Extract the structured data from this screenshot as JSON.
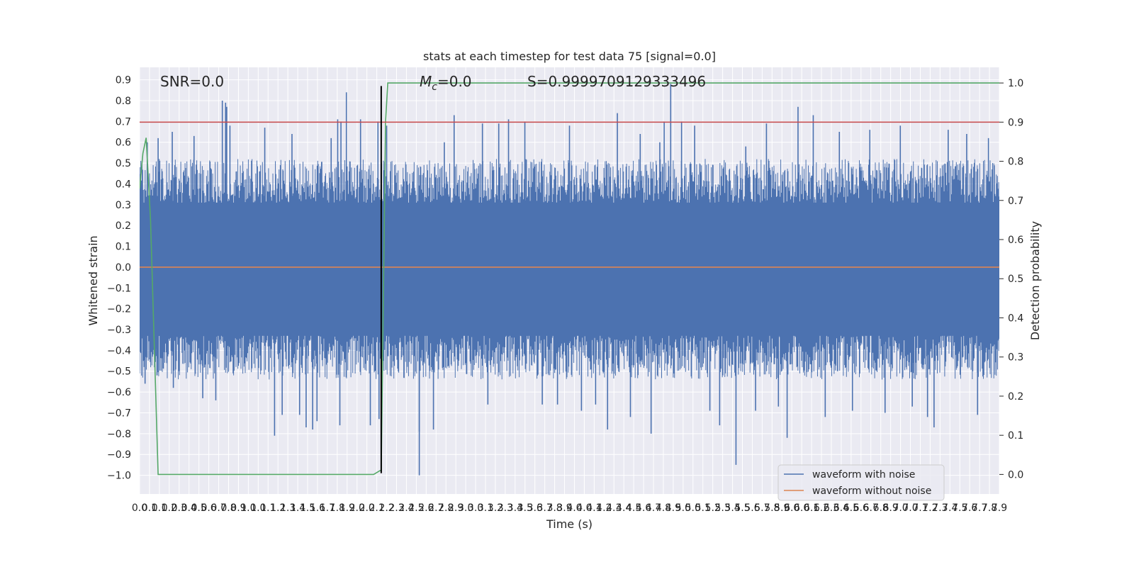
{
  "chart_data": {
    "type": "line",
    "title": "stats at each timestep for test data 75 [signal=0.0]",
    "xlabel": "Time (s)",
    "ylabel_left": "Whitened strain",
    "ylabel_right": "Detection probability",
    "xlim": [
      0.0,
      7.9
    ],
    "ylim_left": [
      -1.09,
      0.96
    ],
    "ylim_right": [
      -0.05,
      1.04
    ],
    "grid": true,
    "x_tick_labels": [
      "0.0",
      "0.1",
      "0.1",
      "0.2",
      "0.3",
      "0.4",
      "0.5",
      "0.6",
      "0.7",
      "0.8",
      "0.9",
      "1.0",
      "1.0",
      "1.1",
      "1.2",
      "1.3",
      "1.4",
      "1.5",
      "1.6",
      "1.7",
      "1.8",
      "1.9",
      "2.0",
      "2.0",
      "2.1",
      "2.2",
      "2.3",
      "2.4",
      "2.5",
      "2.6",
      "2.7",
      "2.8",
      "2.9",
      "3.0",
      "3.0",
      "3.1",
      "3.2",
      "3.3",
      "3.4",
      "3.5",
      "3.6",
      "3.7",
      "3.8",
      "3.9",
      "4.0",
      "4.0",
      "4.1",
      "4.2",
      "4.3",
      "4.4",
      "4.5",
      "4.6",
      "4.7",
      "4.8",
      "4.9",
      "5.0",
      "5.0",
      "5.1",
      "5.2",
      "5.3",
      "5.4",
      "5.5",
      "5.6",
      "5.7",
      "5.8",
      "5.9",
      "6.0",
      "6.0",
      "6.1",
      "6.2",
      "6.3",
      "6.4",
      "6.5",
      "6.6",
      "6.7",
      "6.8",
      "6.9",
      "7.0",
      "7.0",
      "7.1",
      "7.2",
      "7.3",
      "7.4",
      "7.5",
      "7.6",
      "7.7",
      "7.8",
      "7.9"
    ],
    "y_left_ticks": [
      "0.9",
      "0.8",
      "0.7",
      "0.6",
      "0.5",
      "0.4",
      "0.3",
      "0.2",
      "0.1",
      "0.0",
      "-0.1",
      "-0.2",
      "-0.3",
      "-0.4",
      "-0.5",
      "-0.6",
      "-0.7",
      "-0.8",
      "-0.9",
      "-1.0"
    ],
    "y_right_ticks": [
      "1.0",
      "0.9",
      "0.8",
      "0.7",
      "0.6",
      "0.5",
      "0.4",
      "0.3",
      "0.2",
      "0.1",
      "0.0"
    ],
    "series": [
      {
        "name": "waveform with noise",
        "color": "#4c72b0",
        "axis": "left",
        "band_low": -0.33,
        "band_high": 0.31,
        "spikes": [
          {
            "x": 0.0,
            "y": 0.48
          },
          {
            "x": 0.05,
            "y": -0.56
          },
          {
            "x": 0.07,
            "y": 0.6
          },
          {
            "x": 0.16,
            "y": -0.52
          },
          {
            "x": 0.17,
            "y": 0.62
          },
          {
            "x": 0.3,
            "y": 0.65
          },
          {
            "x": 0.31,
            "y": -0.58
          },
          {
            "x": 0.5,
            "y": 0.63
          },
          {
            "x": 0.58,
            "y": -0.63
          },
          {
            "x": 0.7,
            "y": -0.64
          },
          {
            "x": 0.76,
            "y": 0.8
          },
          {
            "x": 0.79,
            "y": 0.79
          },
          {
            "x": 0.8,
            "y": 0.77
          },
          {
            "x": 0.83,
            "y": 0.68
          },
          {
            "x": 1.15,
            "y": 0.67
          },
          {
            "x": 1.24,
            "y": -0.81
          },
          {
            "x": 1.31,
            "y": -0.71
          },
          {
            "x": 1.4,
            "y": 0.64
          },
          {
            "x": 1.47,
            "y": -0.71
          },
          {
            "x": 1.53,
            "y": -0.77
          },
          {
            "x": 1.59,
            "y": -0.78
          },
          {
            "x": 1.63,
            "y": -0.74
          },
          {
            "x": 1.76,
            "y": 0.62
          },
          {
            "x": 1.84,
            "y": -0.76
          },
          {
            "x": 1.82,
            "y": 0.71
          },
          {
            "x": 1.85,
            "y": 0.7
          },
          {
            "x": 1.9,
            "y": 0.84
          },
          {
            "x": 2.03,
            "y": 0.71
          },
          {
            "x": 2.12,
            "y": -0.76
          },
          {
            "x": 2.19,
            "y": 0.7
          },
          {
            "x": 2.2,
            "y": -0.73
          },
          {
            "x": 2.27,
            "y": 0.68
          },
          {
            "x": 2.57,
            "y": -1.0
          },
          {
            "x": 2.57,
            "y": -0.79
          },
          {
            "x": 2.7,
            "y": -0.78
          },
          {
            "x": 2.8,
            "y": 0.6
          },
          {
            "x": 2.89,
            "y": 0.73
          },
          {
            "x": 3.15,
            "y": 0.69
          },
          {
            "x": 3.2,
            "y": -0.66
          },
          {
            "x": 3.3,
            "y": 0.69
          },
          {
            "x": 3.39,
            "y": 0.71
          },
          {
            "x": 3.54,
            "y": 0.7
          },
          {
            "x": 3.7,
            "y": -0.66
          },
          {
            "x": 3.84,
            "y": -0.66
          },
          {
            "x": 3.95,
            "y": 0.68
          },
          {
            "x": 4.06,
            "y": -0.69
          },
          {
            "x": 4.19,
            "y": -0.66
          },
          {
            "x": 4.3,
            "y": -0.78
          },
          {
            "x": 4.39,
            "y": 0.74
          },
          {
            "x": 4.51,
            "y": -0.72
          },
          {
            "x": 4.6,
            "y": 0.64
          },
          {
            "x": 4.7,
            "y": -0.8
          },
          {
            "x": 4.78,
            "y": 0.6
          },
          {
            "x": 4.82,
            "y": 0.7
          },
          {
            "x": 4.88,
            "y": 0.88
          },
          {
            "x": 4.98,
            "y": 0.7
          },
          {
            "x": 5.1,
            "y": 0.68
          },
          {
            "x": 5.24,
            "y": -0.69
          },
          {
            "x": 5.33,
            "y": -0.76
          },
          {
            "x": 5.48,
            "y": -0.95
          },
          {
            "x": 5.57,
            "y": 0.58
          },
          {
            "x": 5.66,
            "y": -0.69
          },
          {
            "x": 5.76,
            "y": 0.69
          },
          {
            "x": 5.87,
            "y": -0.67
          },
          {
            "x": 5.95,
            "y": -0.82
          },
          {
            "x": 6.05,
            "y": 0.77
          },
          {
            "x": 6.19,
            "y": 0.73
          },
          {
            "x": 6.3,
            "y": -0.72
          },
          {
            "x": 6.43,
            "y": 0.65
          },
          {
            "x": 6.55,
            "y": -0.69
          },
          {
            "x": 6.71,
            "y": 0.66
          },
          {
            "x": 6.85,
            "y": -0.7
          },
          {
            "x": 6.99,
            "y": 0.68
          },
          {
            "x": 7.1,
            "y": -0.67
          },
          {
            "x": 7.24,
            "y": -0.72
          },
          {
            "x": 7.3,
            "y": -0.77
          },
          {
            "x": 7.43,
            "y": 0.66
          },
          {
            "x": 7.6,
            "y": 0.64
          },
          {
            "x": 7.7,
            "y": -0.71
          },
          {
            "x": 7.8,
            "y": 0.62
          }
        ]
      },
      {
        "name": "waveform without noise",
        "color": "#dd8452",
        "axis": "left",
        "x": [
          0.0,
          7.9
        ],
        "y": [
          0.0,
          0.0
        ]
      },
      {
        "name": "detection probability",
        "color": "#55a868",
        "axis": "right",
        "x": [
          0.0,
          0.03,
          0.06,
          0.1,
          0.17,
          0.3,
          1.0,
          2.0,
          2.15,
          2.21,
          2.22,
          2.26,
          2.28,
          2.3,
          2.4,
          3.0,
          5.0,
          7.9
        ],
        "y": [
          0.73,
          0.82,
          0.86,
          0.65,
          0.0,
          0.0,
          0.0,
          0.0,
          0.0,
          0.01,
          0.01,
          0.9,
          1.0,
          1.0,
          1.0,
          1.0,
          1.0,
          1.0
        ]
      }
    ],
    "reference_lines": [
      {
        "name": "threshold",
        "color": "#c44e52",
        "axis": "right",
        "orientation": "horizontal",
        "value": 0.9
      },
      {
        "name": "trigger-time",
        "color": "#000000",
        "axis": "left",
        "orientation": "vertical",
        "value": 2.22,
        "range": [
          -0.99,
          0.87
        ]
      }
    ],
    "annotations": {
      "snr": "SNR=0.0",
      "mc": "=0.0",
      "mc_symbol": "M",
      "mc_subscript": "c",
      "s": "S=0.9999709129333496"
    },
    "legend": {
      "position": "lower-right",
      "entries": [
        {
          "label": "waveform with noise",
          "color": "#4c72b0"
        },
        {
          "label": "waveform without noise",
          "color": "#dd8452"
        }
      ]
    }
  }
}
